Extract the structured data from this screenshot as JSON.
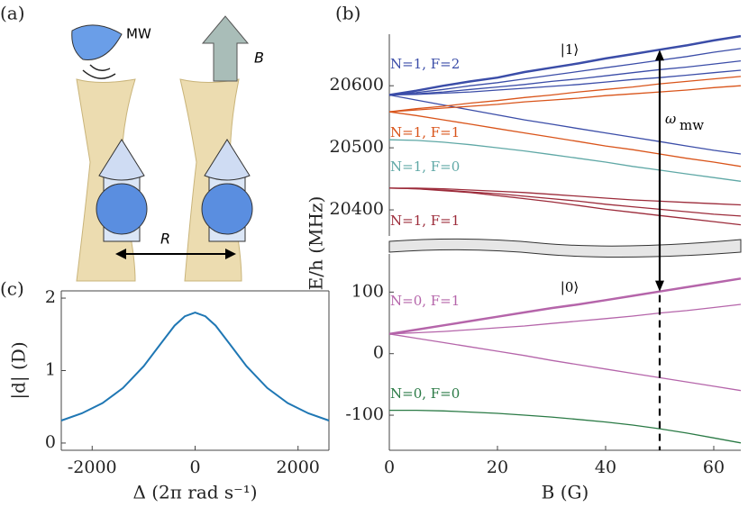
{
  "panel_labels": [
    "(a)",
    "(b)",
    "(c)"
  ],
  "diagram": {
    "mw": "MW",
    "b": "B",
    "r": "R"
  },
  "chart_data": [
    {
      "type": "line",
      "xlim": [
        0,
        65
      ],
      "ylim": [
        20358,
        20683
      ],
      "yticks": [
        20400,
        20500,
        20600
      ],
      "x": [
        0,
        5,
        10,
        15,
        20,
        25,
        30,
        35,
        40,
        45,
        50,
        55,
        60,
        65
      ],
      "series": [
        {
          "color": "#3b4da8",
          "linewidth": 2.5,
          "values": [
            20585,
            20592,
            20600,
            20607,
            20613,
            20622,
            20629,
            20636,
            20644,
            20651,
            20658,
            20665,
            20673,
            20680
          ]
        },
        {
          "color": "#3b4da8",
          "values": [
            20585,
            20589,
            20594,
            20600,
            20605,
            20611,
            20617,
            20623,
            20629,
            20635,
            20641,
            20647,
            20654,
            20660
          ]
        },
        {
          "color": "#3b4da8",
          "values": [
            20585,
            20587,
            20590,
            20594,
            20598,
            20602,
            20607,
            20611,
            20616,
            20621,
            20626,
            20630,
            20635,
            20640
          ]
        },
        {
          "color": "#3b4da8",
          "values": [
            20585,
            20586,
            20588,
            20590,
            20593,
            20596,
            20599,
            20602,
            20606,
            20610,
            20613,
            20617,
            20621,
            20625
          ]
        },
        {
          "color": "#3b4da8",
          "values": [
            20585,
            20577,
            20569,
            20561,
            20553,
            20545,
            20538,
            20531,
            20524,
            20517,
            20510,
            20503,
            20496,
            20490
          ]
        },
        {
          "color": "#d9541a",
          "values": [
            20558,
            20563,
            20567,
            20572,
            20576,
            20581,
            20585,
            20590,
            20594,
            20598,
            20603,
            20607,
            20611,
            20615
          ]
        },
        {
          "color": "#d9541a",
          "values": [
            20558,
            20561,
            20564,
            20567,
            20570,
            20574,
            20577,
            20580,
            20584,
            20587,
            20590,
            20593,
            20597,
            20600
          ]
        },
        {
          "color": "#d9541a",
          "values": [
            20558,
            20552,
            20545,
            20538,
            20531,
            20524,
            20517,
            20510,
            20503,
            20497,
            20490,
            20483,
            20477,
            20470
          ]
        },
        {
          "color": "#5fa8a6",
          "values": [
            20513,
            20512,
            20509,
            20505,
            20500,
            20495,
            20489,
            20483,
            20477,
            20470,
            20464,
            20458,
            20452,
            20446
          ]
        },
        {
          "color": "#9c2b3a",
          "values": [
            20435,
            20435,
            20434,
            20432,
            20430,
            20428,
            20425,
            20422,
            20419,
            20416,
            20414,
            20412,
            20410,
            20408
          ]
        },
        {
          "color": "#9c2b3a",
          "values": [
            20435,
            20434,
            20432,
            20429,
            20426,
            20422,
            20418,
            20414,
            20409,
            20405,
            20401,
            20397,
            20393,
            20390
          ]
        },
        {
          "color": "#9c2b3a",
          "values": [
            20435,
            20434,
            20431,
            20428,
            20423,
            20418,
            20413,
            20407,
            20401,
            20396,
            20391,
            20386,
            20381,
            20376
          ]
        }
      ],
      "annotations": [
        {
          "text": "N=1, F=2",
          "color": "#3b4da8"
        },
        {
          "text": "N=1, F=1",
          "color": "#d9541a"
        },
        {
          "text": "N=1, F=0",
          "color": "#5fa8a6"
        },
        {
          "text": "N=1, F=1",
          "color": "#9c2b3a"
        },
        {
          "text": "|1⟩",
          "color": "#000000"
        },
        {
          "text": "ω",
          "color": "#000000"
        },
        {
          "text": "mw",
          "color": "#000000"
        }
      ]
    },
    {
      "type": "line",
      "xlim": [
        0,
        65
      ],
      "ylim": [
        -157,
        162
      ],
      "xticks": [
        0,
        20,
        40,
        60
      ],
      "yticks": [
        -100,
        0,
        100
      ],
      "x_label": "B (G)",
      "y_label": "E/h (MHz)",
      "x": [
        0,
        5,
        10,
        15,
        20,
        25,
        30,
        35,
        40,
        45,
        50,
        55,
        60,
        65
      ],
      "series": [
        {
          "color": "#b565aa",
          "linewidth": 2.5,
          "values": [
            32,
            39,
            46,
            53,
            60,
            67,
            74,
            80,
            87,
            94,
            101,
            108,
            115,
            122
          ]
        },
        {
          "color": "#b565aa",
          "values": [
            32,
            34,
            36,
            39,
            42,
            45,
            49,
            53,
            57,
            61,
            66,
            70,
            75,
            80
          ]
        },
        {
          "color": "#b565aa",
          "values": [
            32,
            25,
            18,
            11,
            4,
            -3,
            -11,
            -18,
            -25,
            -32,
            -39,
            -46,
            -53,
            -60
          ]
        },
        {
          "color": "#2a7a45",
          "values": [
            -92,
            -92,
            -93,
            -95,
            -97,
            -100,
            -103,
            -107,
            -111,
            -116,
            -122,
            -129,
            -137,
            -145
          ]
        }
      ],
      "annotations": [
        {
          "text": "|0⟩",
          "color": "#000000"
        },
        {
          "text": "N=0, F=1",
          "color": "#b565aa"
        },
        {
          "text": "N=0, F=0",
          "color": "#2a7a45"
        }
      ]
    },
    {
      "type": "line",
      "xlim": [
        -2600,
        2600
      ],
      "ylim": [
        -0.1,
        2.1
      ],
      "xticks": [
        -2000,
        0,
        2000
      ],
      "yticks": [
        0,
        1,
        2
      ],
      "x_label": "Δ (2π rad s⁻¹)",
      "y_label": "|d| (D)",
      "x": [
        -2600,
        -2200,
        -1800,
        -1400,
        -1000,
        -700,
        -400,
        -200,
        0,
        200,
        400,
        700,
        1000,
        1400,
        1800,
        2200,
        2600
      ],
      "series": [
        {
          "color": "#1f77b4",
          "linewidth": 2,
          "values": [
            0.31,
            0.41,
            0.55,
            0.76,
            1.06,
            1.34,
            1.62,
            1.75,
            1.8,
            1.75,
            1.62,
            1.34,
            1.06,
            0.76,
            0.55,
            0.41,
            0.31
          ]
        }
      ]
    }
  ]
}
